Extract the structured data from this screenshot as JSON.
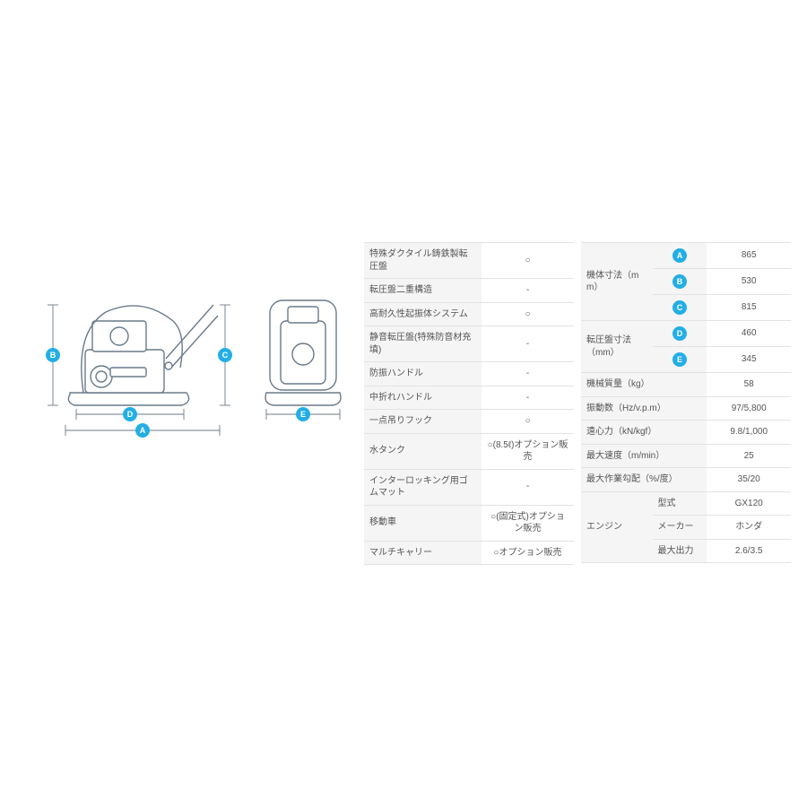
{
  "colors": {
    "badge_bg": "#23aee5",
    "diagram_stroke": "#6a7a8a",
    "dim_line": "#6a7a8a",
    "table_border": "#e3e3e3",
    "label_bg": "#f5f5f5",
    "text": "#555555",
    "background": "#ffffff"
  },
  "diagram": {
    "badges": [
      "A",
      "B",
      "C",
      "D",
      "E"
    ],
    "description": "Side and front schematic of plate compactor with dimension callouts A–E"
  },
  "features_table": {
    "rows": [
      {
        "label": "特殊ダクタイル鋳鉄製転圧盤",
        "value": "○"
      },
      {
        "label": "転圧盤二重構造",
        "value": "-"
      },
      {
        "label": "高耐久性起振体システム",
        "value": "○"
      },
      {
        "label": "静音転圧盤(特殊防音材充填)",
        "value": "-"
      },
      {
        "label": "防振ハンドル",
        "value": "-"
      },
      {
        "label": "中折れハンドル",
        "value": "-"
      },
      {
        "label": "一点吊りフック",
        "value": "○"
      },
      {
        "label": "水タンク",
        "value": "○(8.5ℓ)オプション販売"
      },
      {
        "label": "インターロッキング用ゴムマット",
        "value": "-"
      },
      {
        "label": "移動車",
        "value": "○(固定式)オプション販売"
      },
      {
        "label": "マルチキャリー",
        "value": "○オプション販売"
      }
    ]
  },
  "dimensions_table": {
    "machine_dim_label": "機体寸法（mm）",
    "machine_dims": [
      {
        "badge": "A",
        "value": "865"
      },
      {
        "badge": "B",
        "value": "530"
      },
      {
        "badge": "C",
        "value": "815"
      }
    ],
    "plate_dim_label": "転圧盤寸法（mm）",
    "plate_dims": [
      {
        "badge": "D",
        "value": "460"
      },
      {
        "badge": "E",
        "value": "345"
      }
    ],
    "specs": [
      {
        "label": "機械質量（kg）",
        "value": "58"
      },
      {
        "label": "振動数（Hz/v.p.m）",
        "value": "97/5,800"
      },
      {
        "label": "遠心力（kN/kgf）",
        "value": "9.8/1,000"
      },
      {
        "label": "最大速度（m/min）",
        "value": "25"
      },
      {
        "label": "最大作業勾配（%/度）",
        "value": "35/20"
      }
    ],
    "engine_label": "エンジン",
    "engine": [
      {
        "label": "型式",
        "value": "GX120"
      },
      {
        "label": "メーカー",
        "value": "ホンダ"
      },
      {
        "label": "最大出力",
        "value": "2.6/3.5"
      }
    ]
  }
}
